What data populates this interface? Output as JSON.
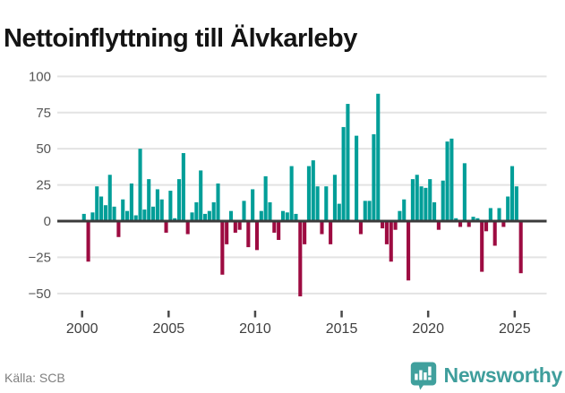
{
  "title": "Nettoinflyttning till Älvkarleby",
  "source": {
    "label": "Källa: SCB"
  },
  "branding": {
    "name": "Newsworthy"
  },
  "colors": {
    "positive": "#009e98",
    "negative": "#9d0b41",
    "grid": "#e3e3e3",
    "zero_line": "#3b3b3b",
    "axis_text": "#555555",
    "x_axis_text": "#3f3f3f",
    "brand_teal": "#40a09d",
    "title_text": "#141414"
  },
  "chart_data": {
    "type": "bar",
    "title": "Nettoinflyttning till Älvkarleby",
    "period": "quarterly",
    "start_year": 2000,
    "start_quarter": 1,
    "values": [
      5,
      -28,
      6,
      24,
      17,
      11,
      32,
      10,
      -11,
      15,
      7,
      26,
      4,
      50,
      8,
      29,
      10,
      22,
      15,
      -8,
      21,
      2,
      29,
      47,
      -9,
      6,
      13,
      35,
      5,
      7,
      13,
      26,
      -37,
      -16,
      7,
      -8,
      -6,
      14,
      -18,
      22,
      -20,
      7,
      31,
      13,
      -8,
      -13,
      7,
      6,
      38,
      5,
      -52,
      -16,
      38,
      42,
      24,
      -9,
      24,
      -16,
      32,
      12,
      65,
      81,
      0,
      59,
      -9,
      14,
      14,
      60,
      88,
      -5,
      -16,
      -28,
      -6,
      7,
      15,
      -41,
      29,
      32,
      24,
      23,
      29,
      13,
      -6,
      28,
      55,
      57,
      2,
      -4,
      40,
      -4,
      3,
      2,
      -35,
      -7,
      9,
      -17,
      9,
      -4,
      17,
      38,
      24,
      -36
    ],
    "y_ticks": [
      100,
      75,
      50,
      25,
      0,
      -25,
      -50
    ],
    "x_tick_years": [
      2000,
      2005,
      2010,
      2015,
      2020,
      2025
    ],
    "ylim": [
      -62,
      108
    ],
    "grid": true,
    "legend": "none",
    "positive_color": "#009e98",
    "negative_color": "#9d0b41"
  }
}
